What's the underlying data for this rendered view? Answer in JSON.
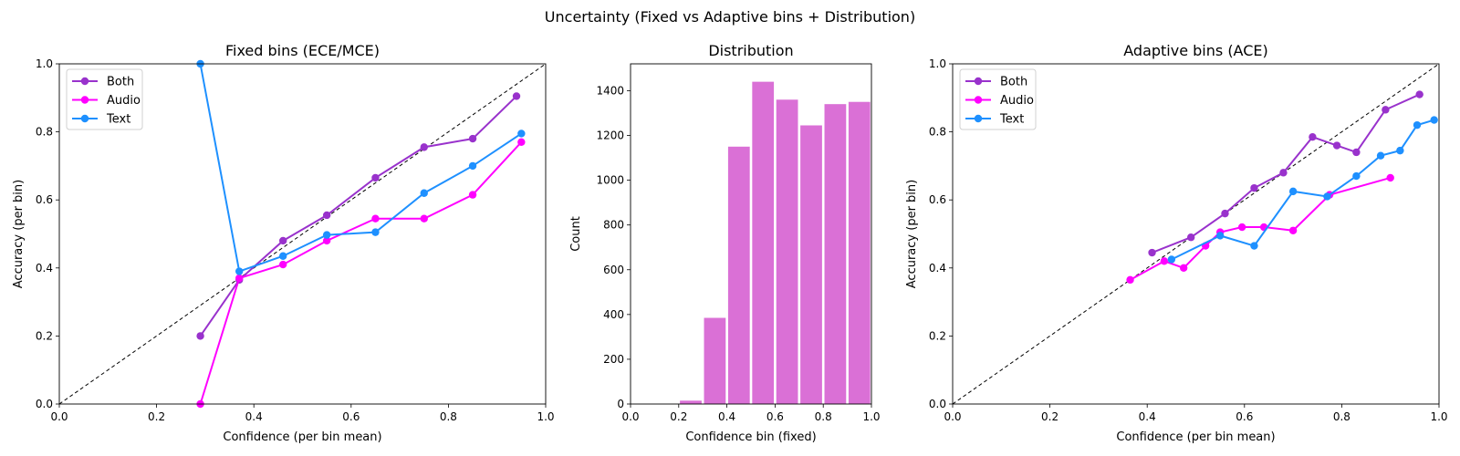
{
  "figure_title": "Uncertainty (Fixed vs Adaptive bins + Distribution)",
  "colors": {
    "Both": "#9932CC",
    "Audio": "#FF00FF",
    "Text": "#1E90FF",
    "bars": "#DA70D6"
  },
  "chart_data": [
    {
      "type": "line",
      "title": "Fixed bins (ECE/MCE)",
      "xlabel": "Confidence (per bin mean)",
      "ylabel": "Accuracy (per bin)",
      "xlim": [
        0,
        1
      ],
      "ylim": [
        0,
        1
      ],
      "xticks": [
        "0.0",
        "0.2",
        "0.4",
        "0.6",
        "0.8",
        "1.0"
      ],
      "yticks": [
        "0.0",
        "0.2",
        "0.4",
        "0.6",
        "0.8",
        "1.0"
      ],
      "diagonal": true,
      "legend": "upper-left",
      "series": [
        {
          "name": "Both",
          "x": [
            0.29,
            0.37,
            0.46,
            0.55,
            0.65,
            0.75,
            0.85,
            0.94
          ],
          "y": [
            0.2,
            0.365,
            0.48,
            0.555,
            0.665,
            0.755,
            0.78,
            0.905
          ]
        },
        {
          "name": "Audio",
          "x": [
            0.29,
            0.37,
            0.46,
            0.55,
            0.65,
            0.75,
            0.85,
            0.95
          ],
          "y": [
            0.0,
            0.37,
            0.41,
            0.48,
            0.545,
            0.545,
            0.615,
            0.77
          ]
        },
        {
          "name": "Text",
          "x": [
            0.29,
            0.37,
            0.46,
            0.55,
            0.65,
            0.75,
            0.85,
            0.95
          ],
          "y": [
            1.0,
            0.39,
            0.435,
            0.497,
            0.505,
            0.62,
            0.7,
            0.795
          ]
        }
      ]
    },
    {
      "type": "bar",
      "title": "Distribution",
      "xlabel": "Confidence bin (fixed)",
      "ylabel": "Count",
      "xlim": [
        0,
        1
      ],
      "ylim": [
        0,
        1520
      ],
      "xticks": [
        "0.0",
        "0.2",
        "0.4",
        "0.6",
        "0.8",
        "1.0"
      ],
      "yticks": [
        "0",
        "200",
        "400",
        "600",
        "800",
        "1000",
        "1200",
        "1400"
      ],
      "bin_edges": [
        0.2,
        0.3,
        0.4,
        0.5,
        0.6,
        0.7,
        0.8,
        0.9,
        1.0
      ],
      "values": [
        15,
        385,
        1150,
        1440,
        1360,
        1245,
        1340,
        1350
      ]
    },
    {
      "type": "line",
      "title": "Adaptive bins (ACE)",
      "xlabel": "Confidence (per bin mean)",
      "ylabel": "Accuracy (per bin)",
      "xlim": [
        0,
        1
      ],
      "ylim": [
        0,
        1
      ],
      "xticks": [
        "0.0",
        "0.2",
        "0.4",
        "0.6",
        "0.8",
        "1.0"
      ],
      "yticks": [
        "0.0",
        "0.2",
        "0.4",
        "0.6",
        "0.8",
        "1.0"
      ],
      "diagonal": true,
      "legend": "upper-left",
      "series": [
        {
          "name": "Both",
          "x": [
            0.41,
            0.49,
            0.56,
            0.62,
            0.68,
            0.74,
            0.79,
            0.83,
            0.89,
            0.96
          ],
          "y": [
            0.445,
            0.49,
            0.56,
            0.635,
            0.68,
            0.785,
            0.76,
            0.74,
            0.865,
            0.91
          ]
        },
        {
          "name": "Audio",
          "x": [
            0.365,
            0.435,
            0.475,
            0.52,
            0.55,
            0.595,
            0.64,
            0.7,
            0.775,
            0.9
          ],
          "y": [
            0.365,
            0.42,
            0.4,
            0.465,
            0.505,
            0.52,
            0.52,
            0.51,
            0.615,
            0.665
          ]
        },
        {
          "name": "Text",
          "x": [
            0.45,
            0.55,
            0.62,
            0.7,
            0.77,
            0.83,
            0.88,
            0.92,
            0.955,
            0.99
          ],
          "y": [
            0.425,
            0.495,
            0.465,
            0.625,
            0.61,
            0.67,
            0.73,
            0.745,
            0.82,
            0.835
          ]
        }
      ]
    }
  ]
}
